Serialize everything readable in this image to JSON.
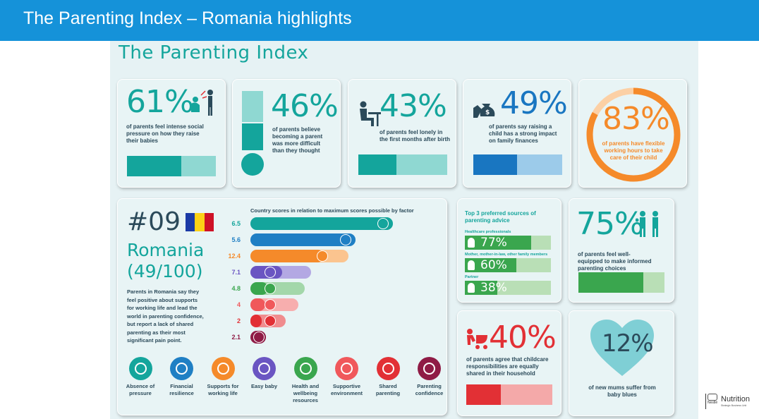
{
  "header": {
    "title": "The Parenting Index – Romania highlights"
  },
  "infographic": {
    "title": "The Parenting Index",
    "stats": [
      {
        "value": "61%",
        "text": "of parents feel intense social pressure on how they raise their babies",
        "fill": 0.61
      },
      {
        "value": "46%",
        "text": "of parents believe becoming a parent was more difficult than they thought",
        "fill": 0.46
      },
      {
        "value": "43%",
        "text": "of parents feel lonely in the first months after birth",
        "fill": 0.43
      },
      {
        "value": "49%",
        "text": "of parents say raising a child has a strong impact on family finances",
        "fill": 0.49
      },
      {
        "value": "83%",
        "text": "of parents have flexible working hours to take care of their child",
        "fill": 0.83
      }
    ],
    "country": {
      "rank": "#09",
      "name": "Romania",
      "score": "(49/100)",
      "summary": "Parents in Romania say they feel positive about supports for working life and lead the world in parenting confidence, but report a lack of shared parenting as their most significant pain point."
    },
    "factors_title": "Country scores in relation to maximum scores possible by factor",
    "factors": [
      {
        "label": "6.5",
        "value": 6.5,
        "max": 6.5,
        "color": "#14a59c",
        "light": "#7dd3cc"
      },
      {
        "label": "5.6",
        "value": 5.6,
        "max": 5.6,
        "color": "#1f7fc4",
        "light": "#7fb8e0"
      },
      {
        "label": "12.4",
        "value": 12.4,
        "max": 18,
        "color": "#f58a2a",
        "light": "#fbc48f"
      },
      {
        "label": "7.1",
        "value": 7.1,
        "max": 11,
        "color": "#6a55c2",
        "light": "#b3a8e3"
      },
      {
        "label": "4.8",
        "value": 4.8,
        "max": 9,
        "color": "#3aa64e",
        "light": "#a3d7aa"
      },
      {
        "label": "4",
        "value": 4,
        "max": 8.5,
        "color": "#f0585b",
        "light": "#f7aeae"
      },
      {
        "label": "2",
        "value": 2,
        "max": 6,
        "color": "#e23035",
        "light": "#f08c8e"
      },
      {
        "label": "2.1",
        "value": 2.1,
        "max": 2.1,
        "color": "#8f1b45",
        "light": "#c9839d"
      }
    ],
    "legend": [
      {
        "label": "Absence of pressure",
        "color": "#14a59c"
      },
      {
        "label": "Financial resilience",
        "color": "#1f7fc4"
      },
      {
        "label": "Supports for working life",
        "color": "#f58a2a"
      },
      {
        "label": "Easy baby",
        "color": "#6a55c2"
      },
      {
        "label": "Health and wellbeing resources",
        "color": "#3aa64e"
      },
      {
        "label": "Supportive environment",
        "color": "#f0585b"
      },
      {
        "label": "Shared parenting",
        "color": "#e23035"
      },
      {
        "label": "Parenting confidence",
        "color": "#8f1b45"
      }
    ],
    "sources": {
      "title": "Top 3 preferred sources of parenting advice",
      "items": [
        {
          "label": "Healthcare professionals",
          "value": "77%",
          "fill": 0.77
        },
        {
          "label": "Mother, mother-in-law, other family members",
          "value": "60%",
          "fill": 0.6
        },
        {
          "label": "Partner",
          "value": "38%",
          "fill": 0.38
        }
      ]
    },
    "equipped": {
      "value": "75%",
      "text": "of parents feel well-equipped to make informed parenting choices",
      "fill": 0.75
    },
    "childcare": {
      "value": "40%",
      "text": "of parents agree that childcare responsibilities are equally shared in their household",
      "fill": 0.4
    },
    "blues": {
      "value": "12%",
      "text": "of new mums suffer from baby blues"
    }
  },
  "logo": {
    "brand": "Nestlé",
    "product": "Nutrition",
    "subtitle": "Strategic Business Unit"
  }
}
